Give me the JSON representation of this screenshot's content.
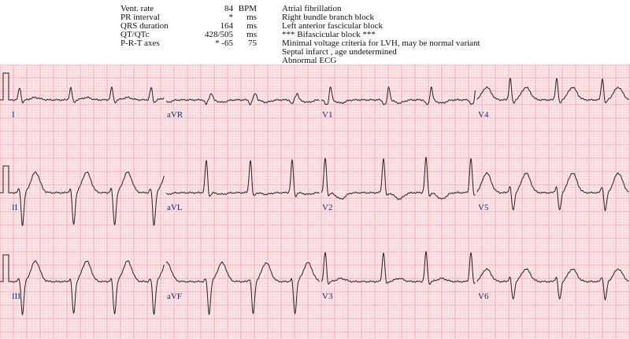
{
  "measurements": [
    {
      "label": "Vent. rate",
      "value": "84",
      "unit": "BPM"
    },
    {
      "label": "PR interval",
      "value": "*",
      "unit": "ms"
    },
    {
      "label": "QRS duration",
      "value": "164",
      "unit": "ms"
    },
    {
      "label": "QT/QTc",
      "value": "428/505",
      "unit": "ms"
    },
    {
      "label": "P-R-T axes",
      "value": "*   -65",
      "unit": "75"
    }
  ],
  "interpretation": [
    "Atrial fibrillation",
    "Right bundle branch block",
    "Left anterior fascicular block",
    "*** Bifascicular block ***",
    "Minimal voltage criteria for LVH, may be normal variant",
    "Septal infarct , age undetermined",
    "Abnormal ECG"
  ],
  "colors": {
    "paper": "#fde9ec",
    "minor_grid": "#f8c6cd",
    "major_grid": "#ef9aa7",
    "trace": "#222222",
    "label": "#1a2a66"
  },
  "chart_data": {
    "type": "line",
    "grid": true,
    "layout": "3x4 standard 12-lead",
    "rows": [
      [
        "I",
        "aVR",
        "V1",
        "V4"
      ],
      [
        "II",
        "aVL",
        "V2",
        "V5"
      ],
      [
        "III",
        "aVF",
        "V3",
        "V6"
      ]
    ]
  }
}
